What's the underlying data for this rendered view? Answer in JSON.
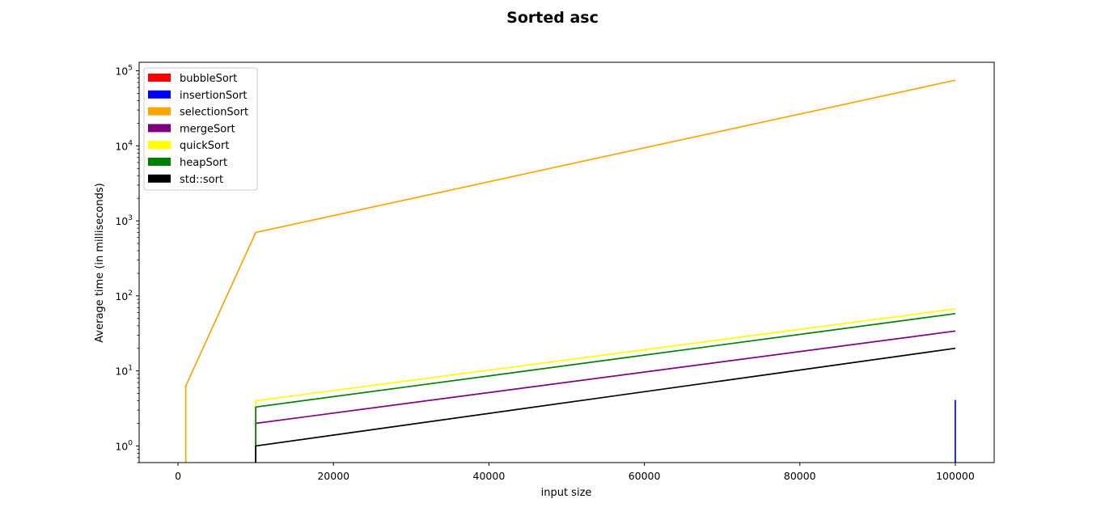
{
  "chart_data": {
    "type": "line",
    "title": "Sorted asc",
    "xlabel": "input size",
    "ylabel": "Average time (in milliseconds)",
    "xscale": "linear",
    "yscale": "log",
    "xlim": [
      -5000,
      105000
    ],
    "ylim": [
      0.6,
      130000
    ],
    "xticks": [
      0,
      20000,
      40000,
      60000,
      80000,
      100000
    ],
    "xtick_labels": [
      "0",
      "20000",
      "40000",
      "60000",
      "80000",
      "100000"
    ],
    "yticks": [
      {
        "exp": 0,
        "base": "10",
        "sup": "0"
      },
      {
        "exp": 1,
        "base": "10",
        "sup": "1"
      },
      {
        "exp": 2,
        "base": "10",
        "sup": "2"
      },
      {
        "exp": 3,
        "base": "10",
        "sup": "3"
      },
      {
        "exp": 4,
        "base": "10",
        "sup": "4"
      },
      {
        "exp": 5,
        "base": "10",
        "sup": "5"
      }
    ],
    "grid": false,
    "legend_position": "upper-left",
    "series": [
      {
        "name": "bubbleSort",
        "color": "#ff0000",
        "x": [],
        "y": []
      },
      {
        "name": "insertionSort",
        "color": "#0000ff",
        "x": [
          100000,
          100000
        ],
        "y": [
          0.6,
          4.1
        ]
      },
      {
        "name": "selectionSort",
        "color": "#ffa500",
        "x": [
          1000,
          1000,
          10000,
          100000
        ],
        "y": [
          0.6,
          6.3,
          700,
          75000
        ]
      },
      {
        "name": "mergeSort",
        "color": "#800080",
        "x": [
          10000,
          10000,
          100000
        ],
        "y": [
          0.6,
          2.0,
          34
        ]
      },
      {
        "name": "quickSort",
        "color": "#ffff00",
        "x": [
          10000,
          10000,
          100000
        ],
        "y": [
          0.6,
          4.0,
          67
        ]
      },
      {
        "name": "heapSort",
        "color": "#008000",
        "x": [
          10000,
          10000,
          100000
        ],
        "y": [
          0.6,
          3.3,
          58
        ]
      },
      {
        "name": "std::sort",
        "color": "#000000",
        "x": [
          10000,
          10000,
          100000
        ],
        "y": [
          0.6,
          1.0,
          20
        ]
      }
    ]
  }
}
